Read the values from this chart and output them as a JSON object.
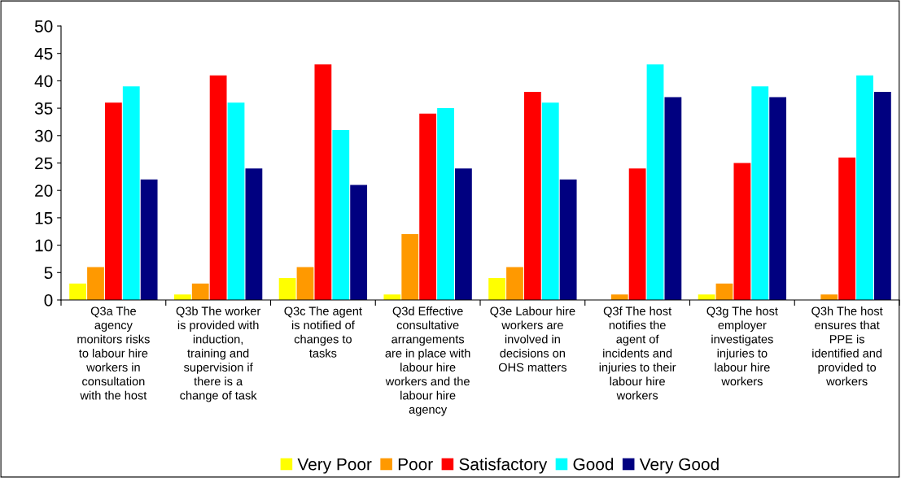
{
  "chart_data": {
    "type": "bar",
    "categories": [
      "Q3a The\nagency\nmonitors risks\nto labour hire\nworkers in\nconsultation\nwith the host",
      "Q3b The worker\nis provided with\ninduction,\ntraining and\nsupervision if\nthere is a\nchange of task",
      "Q3c The agent\nis notified of\nchanges to\ntasks",
      "Q3d Effective\nconsultative\narrangements\nare in place with\nlabour hire\nworkers and the\nlabour hire\nagency",
      "Q3e Labour hire\nworkers are\ninvolved in\ndecisions on\nOHS matters",
      "Q3f The host\nnotifies the\nagent of\nincidents and\ninjuries to their\nlabour hire\nworkers",
      "Q3g The host\nemployer\ninvestigates\ninjuries to\nlabour hire\nworkers",
      "Q3h The host\nensures that\nPPE is\nidentified and\nprovided to\nworkers"
    ],
    "series": [
      {
        "name": "Very Poor",
        "color": "#ffff00",
        "values": [
          3,
          1,
          4,
          1,
          4,
          0,
          1,
          0
        ]
      },
      {
        "name": "Poor",
        "color": "#ff9900",
        "values": [
          6,
          3,
          6,
          12,
          6,
          1,
          3,
          1
        ]
      },
      {
        "name": "Satisfactory",
        "color": "#ff0000",
        "values": [
          36,
          41,
          43,
          34,
          38,
          24,
          25,
          26
        ]
      },
      {
        "name": "Good",
        "color": "#00ffff",
        "values": [
          39,
          36,
          31,
          35,
          36,
          43,
          39,
          41
        ]
      },
      {
        "name": "Very Good",
        "color": "#000080",
        "values": [
          22,
          24,
          21,
          24,
          22,
          37,
          37,
          38
        ]
      }
    ],
    "ylim": [
      0,
      50
    ],
    "yticks": [
      0,
      5,
      10,
      15,
      20,
      25,
      30,
      35,
      40,
      45,
      50
    ],
    "grid": false,
    "legend": "bottom"
  }
}
